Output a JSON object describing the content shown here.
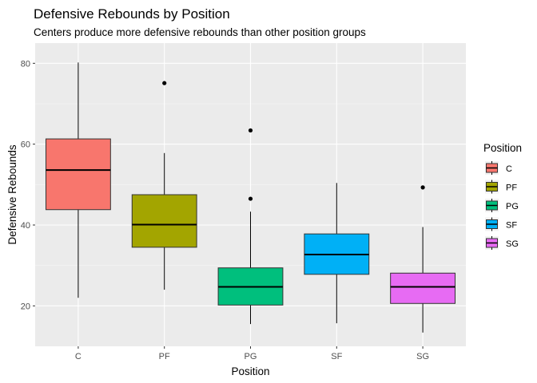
{
  "chart_data": {
    "type": "boxplot",
    "title": "Defensive Rebounds by Position",
    "subtitle": "Centers produce more defensive rebounds than other position groups",
    "xlabel": "Position",
    "ylabel": "Defensive Rebounds",
    "ylim": [
      10,
      85
    ],
    "yticks": [
      20,
      40,
      60,
      80
    ],
    "grid": true,
    "legend": {
      "title": "Position",
      "placement": "right"
    },
    "categories": [
      "C",
      "PF",
      "PG",
      "SF",
      "SG"
    ],
    "boxes": [
      {
        "name": "C",
        "color": "#F8766D",
        "min": 22,
        "q1": 43.8,
        "median": 53.6,
        "q3": 61.3,
        "max": 80.2,
        "outliers": []
      },
      {
        "name": "PF",
        "color": "#A3A500",
        "min": 24,
        "q1": 34.5,
        "median": 40.1,
        "q3": 47.5,
        "max": 57.8,
        "outliers": [
          75.1
        ]
      },
      {
        "name": "PG",
        "color": "#00BF7D",
        "min": 15.5,
        "q1": 20.2,
        "median": 24.7,
        "q3": 29.4,
        "max": 43.3,
        "outliers": [
          46.5,
          63.4
        ]
      },
      {
        "name": "SF",
        "color": "#00B0F6",
        "min": 15.7,
        "q1": 27.8,
        "median": 32.7,
        "q3": 37.8,
        "max": 50.4,
        "outliers": []
      },
      {
        "name": "SG",
        "color": "#E76BF3",
        "min": 13.4,
        "q1": 20.6,
        "median": 24.7,
        "q3": 28.1,
        "max": 39.5,
        "outliers": [
          49.3
        ]
      }
    ]
  }
}
